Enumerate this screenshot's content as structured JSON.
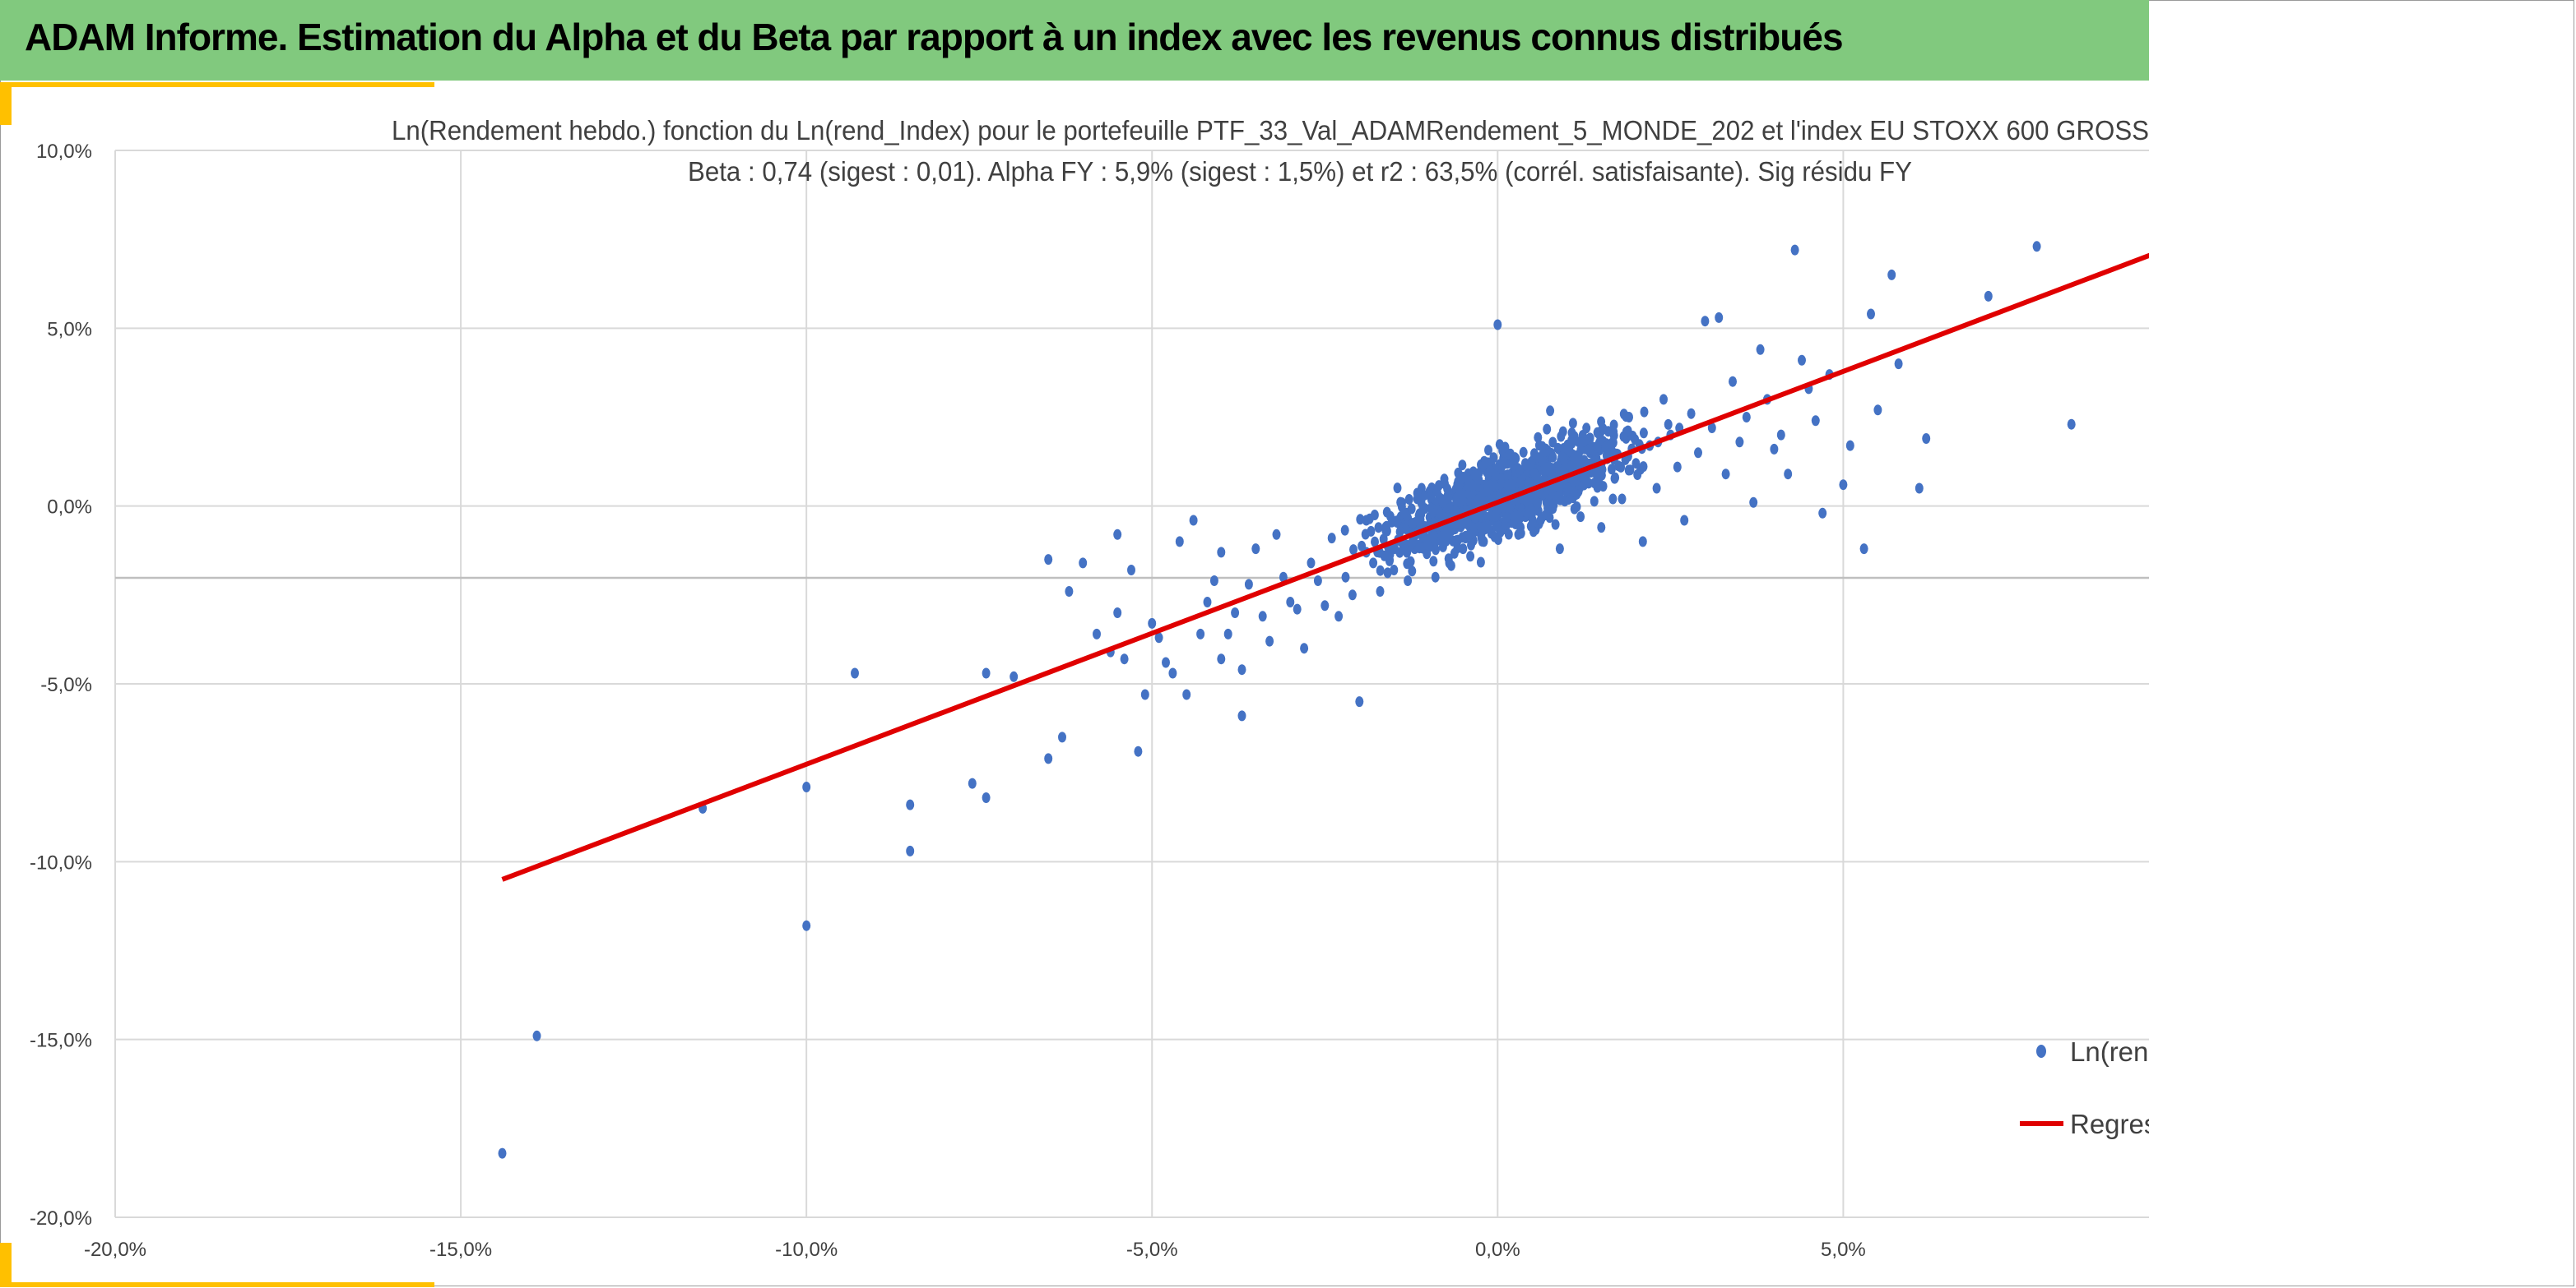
{
  "header": {
    "title": "ADAM Informe. Estimation du Alpha et du Beta par rapport à un index avec les revenus connus distribués"
  },
  "colors": {
    "banner": "#81c97e",
    "accent": "#ffc000",
    "points": "#4472c4",
    "regression": "#e00000",
    "grid": "#d9d9d9"
  },
  "chart_data": {
    "type": "scatter",
    "title": "Ln(Rendement hebdo.) fonction du Ln(rend_Index) pour le portefeuille PTF_33_Val_ADAMRendement_5_MONDE_202 et l'index EU STOXX 600 GROSS",
    "subtitle": "Beta : 0,74 (sigest : 0,01).  Alpha FY : 5,9% (sigest : 1,5%) et r2 : 63,5% (corrél. satisfaisante). Sig résidu FY",
    "xlim": [
      -0.2,
      0.095
    ],
    "ylim": [
      -0.2,
      0.1
    ],
    "x_ticks": [
      {
        "v": -0.2,
        "label": "-20,0%"
      },
      {
        "v": -0.15,
        "label": "-15,0%"
      },
      {
        "v": -0.1,
        "label": "-10,0%"
      },
      {
        "v": -0.05,
        "label": "-5,0%"
      },
      {
        "v": 0,
        "label": "0,0%"
      },
      {
        "v": 0.05,
        "label": "5,0%"
      }
    ],
    "y_ticks": [
      {
        "v": 0.1,
        "label": "10,0%"
      },
      {
        "v": 0.05,
        "label": "5,0%"
      },
      {
        "v": 0,
        "label": "0,0%"
      },
      {
        "v": -0.05,
        "label": "-5,0%"
      },
      {
        "v": -0.1,
        "label": "-10,0%"
      },
      {
        "v": -0.15,
        "label": "-15,0%"
      },
      {
        "v": -0.2,
        "label": "-20,0%"
      }
    ],
    "grid": true,
    "legend_position": "right",
    "series": [
      {
        "name": "Ln(rend",
        "kind": "scatter",
        "color": "#4472c4",
        "points": [
          [
            -0.144,
            -0.182
          ],
          [
            -0.139,
            -0.149
          ],
          [
            -0.115,
            -0.085
          ],
          [
            -0.1,
            -0.118
          ],
          [
            -0.1,
            -0.079
          ],
          [
            -0.093,
            -0.047
          ],
          [
            -0.085,
            -0.097
          ],
          [
            -0.085,
            -0.084
          ],
          [
            -0.076,
            -0.078
          ],
          [
            -0.074,
            -0.082
          ],
          [
            -0.074,
            -0.047
          ],
          [
            -0.07,
            -0.048
          ],
          [
            -0.065,
            -0.071
          ],
          [
            -0.063,
            -0.065
          ],
          [
            -0.065,
            -0.015
          ],
          [
            -0.062,
            -0.024
          ],
          [
            -0.06,
            -0.016
          ],
          [
            -0.058,
            -0.036
          ],
          [
            -0.056,
            -0.041
          ],
          [
            -0.055,
            -0.03
          ],
          [
            -0.055,
            -0.008
          ],
          [
            -0.054,
            -0.043
          ],
          [
            -0.053,
            -0.018
          ],
          [
            -0.052,
            -0.069
          ],
          [
            -0.051,
            -0.053
          ],
          [
            -0.05,
            -0.033
          ],
          [
            -0.049,
            -0.037
          ],
          [
            -0.048,
            -0.044
          ],
          [
            -0.047,
            -0.047
          ],
          [
            -0.046,
            -0.01
          ],
          [
            -0.045,
            -0.053
          ],
          [
            -0.044,
            -0.004
          ],
          [
            -0.043,
            -0.036
          ],
          [
            -0.042,
            -0.027
          ],
          [
            -0.041,
            -0.021
          ],
          [
            -0.04,
            -0.043
          ],
          [
            -0.04,
            -0.013
          ],
          [
            -0.039,
            -0.036
          ],
          [
            -0.038,
            -0.03
          ],
          [
            -0.037,
            -0.046
          ],
          [
            -0.037,
            -0.059
          ],
          [
            -0.036,
            -0.022
          ],
          [
            -0.035,
            -0.012
          ],
          [
            -0.034,
            -0.031
          ],
          [
            -0.033,
            -0.038
          ],
          [
            -0.032,
            -0.008
          ],
          [
            -0.031,
            -0.02
          ],
          [
            -0.03,
            -0.027
          ],
          [
            -0.029,
            -0.029
          ],
          [
            -0.028,
            -0.04
          ],
          [
            -0.027,
            -0.016
          ],
          [
            -0.026,
            -0.021
          ],
          [
            -0.025,
            -0.028
          ],
          [
            -0.024,
            -0.009
          ],
          [
            -0.023,
            -0.031
          ],
          [
            -0.022,
            -0.02
          ],
          [
            -0.021,
            -0.025
          ],
          [
            -0.02,
            -0.055
          ],
          [
            -0.019,
            -0.013
          ],
          [
            -0.019,
            -0.004
          ],
          [
            -0.018,
            -0.016
          ],
          [
            -0.017,
            -0.024
          ],
          [
            -0.016,
            -0.007
          ],
          [
            -0.015,
            -0.018
          ],
          [
            -0.014,
            -0.003
          ],
          [
            -0.013,
            -0.021
          ],
          [
            -0.012,
            -0.012
          ],
          [
            -0.011,
            0.005
          ],
          [
            -0.01,
            -0.01
          ],
          [
            -0.009,
            -0.02
          ],
          [
            -0.008,
            -0.004
          ],
          [
            -0.007,
            -0.016
          ],
          [
            -0.006,
            0.002
          ],
          [
            -0.005,
            -0.012
          ],
          [
            -0.004,
            -0.006
          ],
          [
            -0.003,
            0.008
          ],
          [
            -0.002,
            -0.01
          ],
          [
            -0.001,
            0.003
          ],
          [
            0.0,
            0.051
          ],
          [
            0.001,
            -0.002
          ],
          [
            0.002,
            0.006
          ],
          [
            0.003,
            -0.008
          ],
          [
            0.004,
            0.012
          ],
          [
            0.005,
            0.001
          ],
          [
            0.006,
            -0.005
          ],
          [
            0.007,
            0.009
          ],
          [
            0.008,
            0.003
          ],
          [
            0.009,
            -0.012
          ],
          [
            0.01,
            0.014
          ],
          [
            0.011,
            0.006
          ],
          [
            0.012,
            -0.003
          ],
          [
            0.013,
            0.017
          ],
          [
            0.014,
            0.01
          ],
          [
            0.015,
            -0.006
          ],
          [
            0.016,
            0.021
          ],
          [
            0.017,
            0.008
          ],
          [
            0.018,
            0.002
          ],
          [
            0.019,
            0.025
          ],
          [
            0.02,
            0.012
          ],
          [
            0.021,
            -0.01
          ],
          [
            0.022,
            0.017
          ],
          [
            0.023,
            0.005
          ],
          [
            0.024,
            0.03
          ],
          [
            0.025,
            0.02
          ],
          [
            0.026,
            0.011
          ],
          [
            0.027,
            -0.004
          ],
          [
            0.028,
            0.026
          ],
          [
            0.029,
            0.015
          ],
          [
            0.03,
            0.052
          ],
          [
            0.031,
            0.022
          ],
          [
            0.032,
            0.053
          ],
          [
            0.033,
            0.009
          ],
          [
            0.034,
            0.035
          ],
          [
            0.035,
            0.018
          ],
          [
            0.036,
            0.025
          ],
          [
            0.037,
            0.001
          ],
          [
            0.038,
            0.044
          ],
          [
            0.039,
            0.03
          ],
          [
            0.04,
            0.016
          ],
          [
            0.041,
            0.02
          ],
          [
            0.042,
            0.009
          ],
          [
            0.043,
            0.072
          ],
          [
            0.044,
            0.041
          ],
          [
            0.045,
            0.033
          ],
          [
            0.046,
            0.024
          ],
          [
            0.047,
            -0.002
          ],
          [
            0.048,
            0.037
          ],
          [
            0.05,
            0.006
          ],
          [
            0.051,
            0.017
          ],
          [
            0.053,
            -0.012
          ],
          [
            0.054,
            0.054
          ],
          [
            0.055,
            0.027
          ],
          [
            0.057,
            0.065
          ],
          [
            0.058,
            0.04
          ],
          [
            0.061,
            0.005
          ],
          [
            0.062,
            0.019
          ],
          [
            0.071,
            0.059
          ],
          [
            0.078,
            0.073
          ],
          [
            0.083,
            0.023
          ]
        ]
      },
      {
        "name": "Regres",
        "kind": "line",
        "color": "#e00000",
        "x": [
          -0.144,
          0.095
        ],
        "y": [
          -0.105,
          0.071
        ]
      }
    ]
  }
}
